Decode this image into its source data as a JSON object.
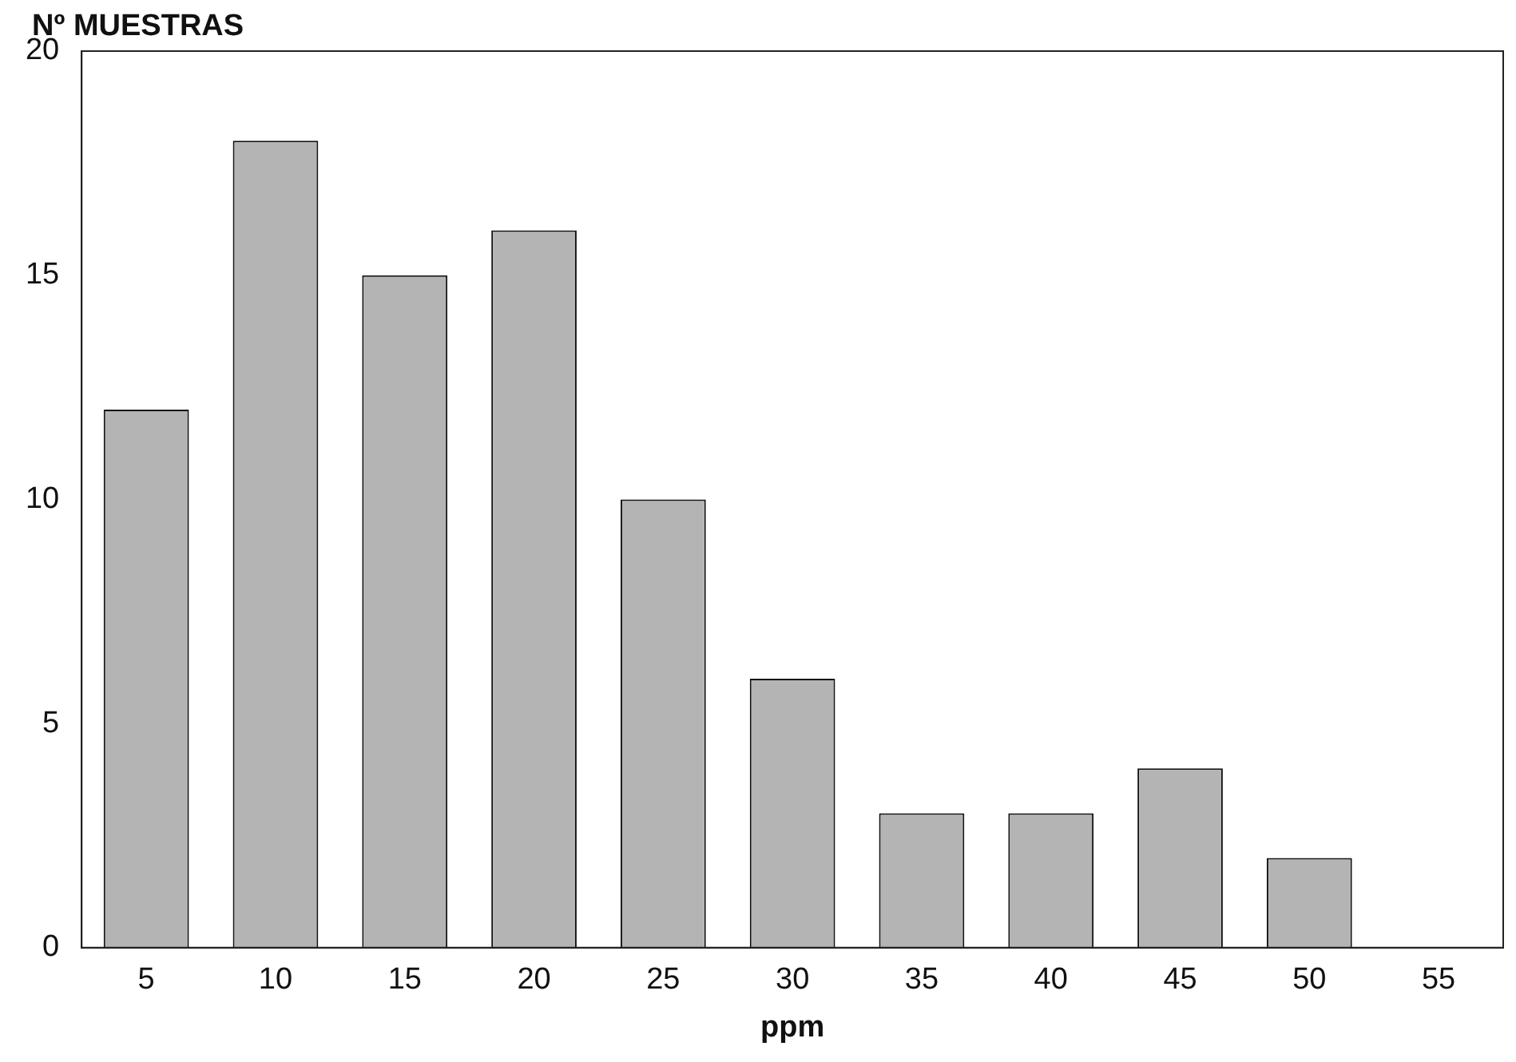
{
  "chart_data": {
    "type": "bar",
    "ylabel": "Nº MUESTRAS",
    "xlabel": "ppm",
    "categories": [
      "5",
      "10",
      "15",
      "20",
      "25",
      "30",
      "35",
      "40",
      "45",
      "50",
      "55"
    ],
    "values": [
      12,
      18,
      15,
      16,
      10,
      6,
      3,
      3,
      4,
      2,
      0
    ],
    "color": "#b4b4b4",
    "ylim": [
      0,
      20
    ],
    "yticks": [
      0,
      5,
      10,
      15,
      20
    ],
    "grid": false,
    "legend": false
  }
}
